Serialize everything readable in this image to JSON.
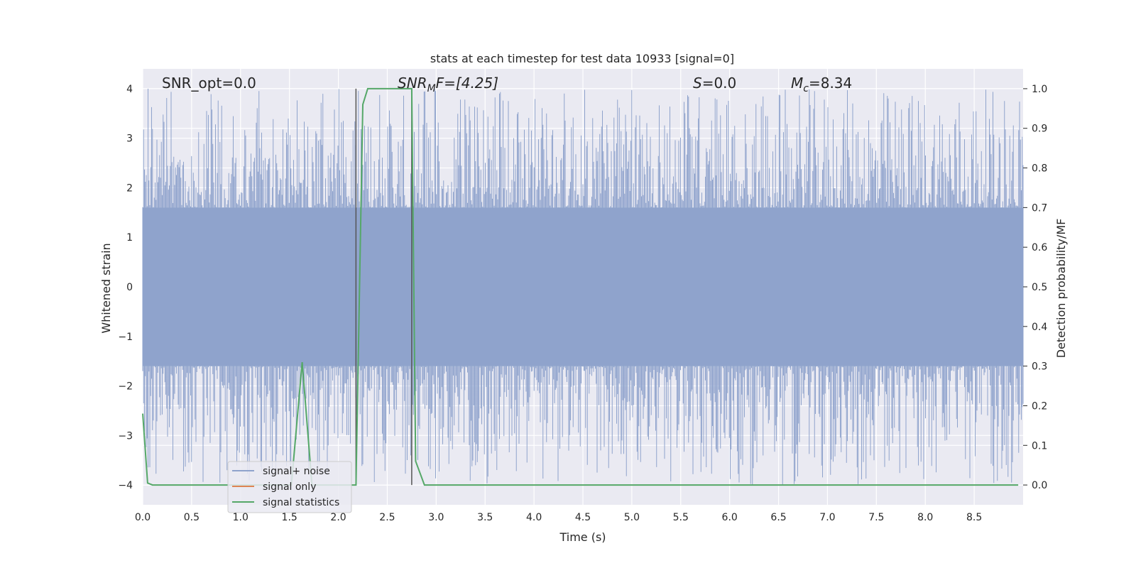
{
  "chart_data": {
    "type": "line",
    "title": "stats at each timestep for test data 10933 [signal=0]",
    "xlabel": "Time (s)",
    "ylabel_left": "Whitened strain",
    "ylabel_right": "Detection probability/MF",
    "xlim": [
      0.0,
      9.0
    ],
    "ylim_left": [
      -4.4,
      4.4
    ],
    "ylim_right": [
      -0.05,
      1.05
    ],
    "x_ticks": [
      "0.0",
      "0.5",
      "1.0",
      "1.5",
      "2.0",
      "2.5",
      "3.0",
      "3.5",
      "4.0",
      "4.5",
      "5.0",
      "5.5",
      "6.0",
      "6.5",
      "7.0",
      "7.5",
      "8.0",
      "8.5"
    ],
    "y_ticks_left": [
      "4",
      "3",
      "2",
      "1",
      "0",
      "−1",
      "−2",
      "−3",
      "−4"
    ],
    "y_ticks_right": [
      "1.0",
      "0.9",
      "0.8",
      "0.7",
      "0.6",
      "0.5",
      "0.4",
      "0.3",
      "0.2",
      "0.1",
      "0.0"
    ],
    "grid": true,
    "legend_position": "lower-left",
    "annotations": {
      "snr_opt": "SNR_opt=0.0",
      "snr_mf_italic": "SNR",
      "snr_mf_sub": "M",
      "snr_mf_rest": "F=[4.25]",
      "s_italic": "S",
      "s_rest": "=0.0",
      "mc_italic": "M",
      "mc_sub": "c",
      "mc_rest": "=8.34"
    },
    "vertical_markers_x": [
      2.18,
      2.75
    ],
    "series": [
      {
        "name": "signal+ noise",
        "color": "#8fa3cc",
        "axis": "left",
        "noise_band": {
          "core_low": -1.6,
          "core_high": 1.6,
          "typical_peak": 2.5,
          "max_peak": 4.0,
          "min_trough": -4.0
        }
      },
      {
        "name": "signal only",
        "color": "#dd8452",
        "axis": "left",
        "x": [
          0.0,
          9.0
        ],
        "y": [
          0.0,
          0.0
        ]
      },
      {
        "name": "signal statistics",
        "color": "#55a868",
        "axis": "right",
        "x": [
          0.0,
          0.05,
          0.1,
          1.4,
          1.52,
          1.63,
          1.73,
          1.85,
          2.18,
          2.25,
          2.3,
          2.75,
          2.79,
          2.88,
          8.95
        ],
        "y": [
          0.18,
          0.005,
          0.0,
          0.0,
          0.0,
          0.31,
          0.0,
          0.0,
          0.0,
          0.96,
          1.0,
          1.0,
          0.06,
          0.0,
          0.0
        ]
      }
    ]
  }
}
